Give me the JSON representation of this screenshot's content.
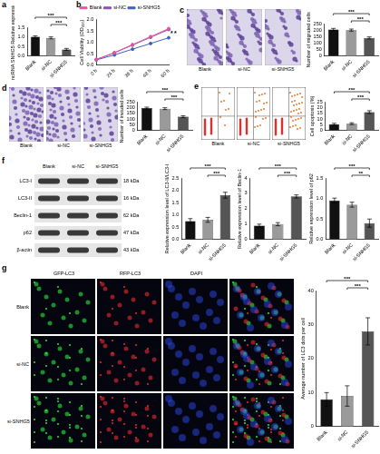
{
  "chart_data": [
    {
      "panel": "a",
      "type": "bar",
      "y_label": "LncRNA SNHG5 Relative expression",
      "categories": [
        "Blank",
        "si-NC",
        "si-SNHG5"
      ],
      "values": [
        1.0,
        0.95,
        0.35
      ],
      "errors": [
        0.05,
        0.05,
        0.05
      ],
      "colors": [
        "#111111",
        "#9a9a9a",
        "#555555"
      ],
      "ylim": [
        0,
        1.5
      ],
      "yticks": [
        {
          "value": 0,
          "label": "0.0"
        },
        {
          "value": 0.5,
          "label": "0.5"
        },
        {
          "value": 1,
          "label": "1.0"
        },
        {
          "value": 1.5,
          "label": "1.5"
        }
      ],
      "significance": [
        {
          "from": 0,
          "to": 2,
          "label": "***"
        },
        {
          "from": 1,
          "to": 2,
          "label": "***"
        }
      ]
    },
    {
      "panel": "b",
      "type": "line",
      "y_label": "Cell Viability (OD₄₅₀)",
      "categories": [
        "0 h",
        "24 h",
        "36 h",
        "48 h",
        "60 h"
      ],
      "series": [
        {
          "name": "Blank",
          "color": "#e0579a",
          "values": [
            0.25,
            0.55,
            0.9,
            1.25,
            1.6
          ]
        },
        {
          "name": "si-NC",
          "color": "#8a4fb0",
          "values": [
            0.25,
            0.54,
            0.88,
            1.22,
            1.56
          ]
        },
        {
          "name": "si-SNHG5",
          "color": "#3a62c4",
          "values": [
            0.23,
            0.45,
            0.7,
            0.95,
            1.2
          ]
        }
      ],
      "ylim": [
        0,
        2
      ],
      "yticks": [
        {
          "value": 0,
          "label": "0.0"
        },
        {
          "value": 0.5,
          "label": "0.5"
        },
        {
          "value": 1,
          "label": "1.0"
        },
        {
          "value": 1.5,
          "label": "1.5"
        },
        {
          "value": 2,
          "label": "2.0"
        }
      ],
      "legend": "top left",
      "marker": "circle",
      "annotations": [
        "*",
        "*"
      ]
    },
    {
      "type": "bar",
      "y_label": "Number of migrated cells",
      "categories": [
        "Blank",
        "si-NC",
        "si-SNHG5"
      ],
      "values": [
        205,
        200,
        140
      ],
      "errors": [
        8,
        8,
        8
      ],
      "colors": [
        "#111111",
        "#9a9a9a",
        "#555555"
      ],
      "ylim": [
        0,
        250
      ],
      "yticks": [
        0,
        50,
        100,
        150,
        200,
        250
      ],
      "significance": [
        {
          "from": 0,
          "to": 2,
          "label": "***"
        },
        {
          "from": 1,
          "to": 2,
          "label": "***"
        }
      ]
    },
    {
      "type": "bar",
      "y_label": "Number of invaded cells",
      "categories": [
        "Blank",
        "si-NC",
        "si-SNHG5"
      ],
      "values": [
        195,
        190,
        120
      ],
      "errors": [
        8,
        8,
        8
      ],
      "colors": [
        "#111111",
        "#9a9a9a",
        "#555555"
      ],
      "ylim": [
        0,
        250
      ],
      "yticks": [
        0,
        50,
        100,
        150,
        200,
        250
      ],
      "significance": [
        {
          "from": 0,
          "to": 2,
          "label": "***"
        },
        {
          "from": 1,
          "to": 2,
          "label": "***"
        }
      ]
    },
    {
      "type": "bar",
      "y_label": "Cell apoptosis (%)",
      "categories": [
        "Blank",
        "si-NC",
        "si-SNHG5"
      ],
      "values": [
        5.5,
        6,
        16
      ],
      "errors": [
        0.8,
        0.8,
        1.2
      ],
      "colors": [
        "#111111",
        "#9a9a9a",
        "#555555"
      ],
      "ylim": [
        0,
        25
      ],
      "yticks": [
        0,
        5,
        10,
        15,
        20,
        25
      ],
      "significance": [
        {
          "from": 0,
          "to": 2,
          "label": "***"
        },
        {
          "from": 1,
          "to": 2,
          "label": "***"
        }
      ]
    },
    {
      "type": "bar",
      "y_label": "Relative expression level of LC3-II/LC3-I",
      "categories": [
        "Blank",
        "si-NC",
        "si-SNHG5"
      ],
      "values": [
        0.75,
        0.8,
        1.8
      ],
      "errors": [
        0.1,
        0.1,
        0.12
      ],
      "colors": [
        "#111111",
        "#9a9a9a",
        "#555555"
      ],
      "ylim": [
        0,
        2.5
      ],
      "yticks": [
        {
          "value": 0,
          "label": "0.0"
        },
        {
          "value": 0.5,
          "label": "0.5"
        },
        {
          "value": 1,
          "label": "1.0"
        },
        {
          "value": 1.5,
          "label": "1.5"
        },
        {
          "value": 2,
          "label": "2.0"
        },
        {
          "value": 2.5,
          "label": "2.5"
        }
      ],
      "significance": [
        {
          "from": 0,
          "to": 2,
          "label": "***"
        },
        {
          "from": 1,
          "to": 2,
          "label": "***"
        }
      ]
    },
    {
      "type": "bar",
      "y_label": "Relative expression level of Beclin-1",
      "categories": [
        "Blank",
        "si-NC",
        "si-SNHG5"
      ],
      "values": [
        0.9,
        1.0,
        2.8
      ],
      "errors": [
        0.1,
        0.1,
        0.1
      ],
      "colors": [
        "#111111",
        "#9a9a9a",
        "#555555"
      ],
      "ylim": [
        0,
        4
      ],
      "yticks": [
        0,
        1,
        2,
        3,
        4
      ],
      "significance": [
        {
          "from": 0,
          "to": 2,
          "label": "***"
        },
        {
          "from": 1,
          "to": 2,
          "label": "***"
        }
      ]
    },
    {
      "type": "bar",
      "y_label": "Relative expression level of p62",
      "categories": [
        "Blank",
        "si-NC",
        "si-SNHG5"
      ],
      "values": [
        0.95,
        0.85,
        0.4
      ],
      "errors": [
        0.06,
        0.06,
        0.1
      ],
      "colors": [
        "#111111",
        "#9a9a9a",
        "#555555"
      ],
      "ylim": [
        0,
        1.5
      ],
      "yticks": [
        {
          "value": 0,
          "label": "0.0"
        },
        {
          "value": 0.5,
          "label": "0.5"
        },
        {
          "value": 1,
          "label": "1.0"
        },
        {
          "value": 1.5,
          "label": "1.5"
        }
      ],
      "significance": [
        {
          "from": 0,
          "to": 2,
          "label": "***"
        },
        {
          "from": 1,
          "to": 2,
          "label": "**"
        }
      ]
    },
    {
      "type": "bar",
      "y_label": "Average number of LC3 dots per cell",
      "categories": [
        "Blank",
        "si-NC",
        "si-SNHG5"
      ],
      "values": [
        8,
        9,
        28
      ],
      "errors": [
        2,
        3,
        4
      ],
      "colors": [
        "#111111",
        "#9a9a9a",
        "#555555"
      ],
      "ylim": [
        0,
        40
      ],
      "yticks": [
        0,
        10,
        20,
        30,
        40
      ],
      "significance": [
        {
          "from": 0,
          "to": 2,
          "label": "***"
        },
        {
          "from": 1,
          "to": 2,
          "label": "***"
        }
      ]
    }
  ],
  "images": {
    "c": {
      "panel": "c",
      "labels": [
        "Blank",
        "si-NC",
        "si-SNHG5"
      ]
    },
    "d": {
      "panel": "d",
      "labels": [
        "Blank",
        "si-NC",
        "si-SNHG5"
      ]
    },
    "e": {
      "panel": "e",
      "labels": [
        "Blank",
        "si-NC",
        "si-SNHG5"
      ]
    },
    "f": {
      "panel": "f",
      "lanes": [
        "Blank",
        "si-NC",
        "si-SNHG5"
      ],
      "bands": [
        {
          "name": "LC3-I",
          "size": "18 kDa"
        },
        {
          "name": "LC3-II",
          "size": "16 kDa"
        },
        {
          "name": "Beclin-1",
          "size": "62 kDa"
        },
        {
          "name": "p62",
          "size": "47 kDa"
        },
        {
          "name": "β-actin",
          "size": "43 kDa"
        }
      ]
    },
    "g": {
      "panel": "g",
      "channels": [
        "GFP-LC3",
        "RFP-LC3",
        "DAPI"
      ],
      "rows": [
        "Blank",
        "si-NC",
        "si-SNHG5"
      ]
    }
  }
}
